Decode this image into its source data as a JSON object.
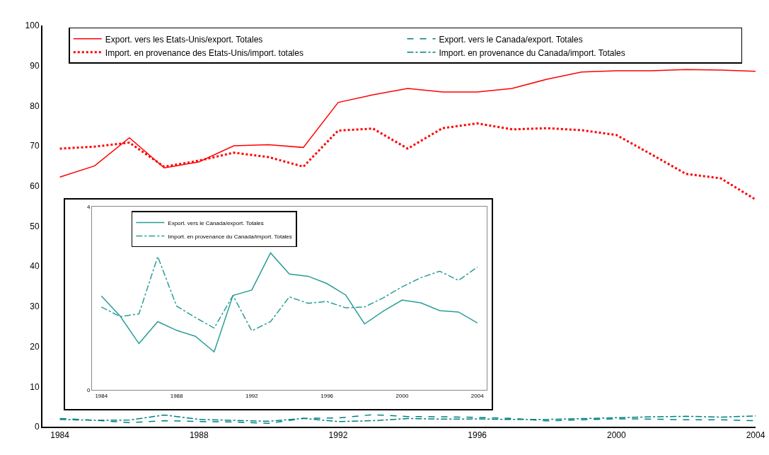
{
  "chart_data": [
    {
      "type": "line",
      "x": [
        1984,
        1985,
        1986,
        1987,
        1988,
        1989,
        1990,
        1991,
        1992,
        1993,
        1994,
        1995,
        1996,
        1997,
        1998,
        1999,
        2000,
        2001,
        2002,
        2003,
        2004
      ],
      "xlim": [
        1983.5,
        2004
      ],
      "xticks": [
        1984,
        1988,
        1992,
        1996,
        2000,
        2004
      ],
      "ylim": [
        0,
        100
      ],
      "yticks": [
        0,
        10,
        20,
        30,
        40,
        50,
        60,
        70,
        80,
        90,
        100
      ],
      "legend": "top",
      "series": [
        {
          "name": "Export. vers les Etats-Unis/export. Totales",
          "color": "#ff0000",
          "line_style": "solid",
          "values": [
            62.2,
            65,
            72,
            64.5,
            66,
            70,
            70.3,
            69.6,
            80.8,
            82.7,
            84.3,
            83.4,
            83.4,
            84.3,
            86.6,
            88.4,
            88.7,
            88.7,
            89,
            88.9,
            88.6
          ]
        },
        {
          "name": "Export. vers le Canada/export. Totales",
          "color": "#008080",
          "line_style": "dashed",
          "values": [
            2.05,
            1.61,
            1.01,
            1.49,
            1.3,
            1.17,
            0.83,
            2.06,
            2.18,
            2.99,
            2.53,
            2.48,
            2.32,
            2.07,
            1.44,
            1.72,
            1.96,
            1.9,
            1.73,
            1.7,
            1.46
          ]
        },
        {
          "name": "Import. en provenance des Etats-Unis/import. totales",
          "color": "#ff0000",
          "line_style": "dotted",
          "values": [
            69.3,
            69.8,
            70.8,
            64.8,
            66.3,
            68.3,
            67.2,
            64.8,
            73.8,
            74.3,
            69.3,
            74.4,
            75.6,
            74.1,
            74.4,
            73.9,
            72.7,
            67.9,
            63,
            61.9,
            56.6
          ]
        },
        {
          "name": "Import. en provenance du Canada/import. Totales",
          "color": "#008080",
          "line_style": "dashdot",
          "values": [
            1.81,
            1.6,
            1.66,
            2.91,
            1.83,
            1.58,
            1.35,
            2.06,
            1.29,
            1.49,
            2.03,
            1.89,
            1.93,
            1.79,
            1.81,
            2.01,
            2.25,
            2.45,
            2.59,
            2.39,
            2.68
          ]
        }
      ]
    },
    {
      "type": "line",
      "x": [
        1984,
        1985,
        1986,
        1987,
        1988,
        1989,
        1990,
        1991,
        1992,
        1993,
        1994,
        1995,
        1996,
        1997,
        1998,
        1999,
        2000,
        2001,
        2002,
        2003,
        2004
      ],
      "xlim": [
        1983.5,
        2004.5
      ],
      "xticks": [
        1984,
        1988,
        1992,
        1996,
        2000,
        2004
      ],
      "ylim": [
        0,
        4
      ],
      "yticks": [
        0,
        4
      ],
      "legend": "top",
      "series": [
        {
          "name": "Export. vers le Canada/export. Totales",
          "color": "#2a9d96",
          "line_style": "solid",
          "values": [
            2.05,
            1.61,
            1.01,
            1.49,
            1.3,
            1.17,
            0.83,
            2.06,
            2.18,
            2.99,
            2.53,
            2.48,
            2.32,
            2.07,
            1.44,
            1.72,
            1.96,
            1.9,
            1.73,
            1.7,
            1.46
          ]
        },
        {
          "name": "Import. en provenance du Canada/import. Totales",
          "color": "#2a9d96",
          "line_style": "dashdot",
          "values": [
            1.81,
            1.6,
            1.66,
            2.91,
            1.83,
            1.58,
            1.35,
            2.06,
            1.29,
            1.49,
            2.03,
            1.89,
            1.93,
            1.79,
            1.81,
            2.01,
            2.25,
            2.45,
            2.59,
            2.39,
            2.68
          ]
        }
      ]
    }
  ]
}
